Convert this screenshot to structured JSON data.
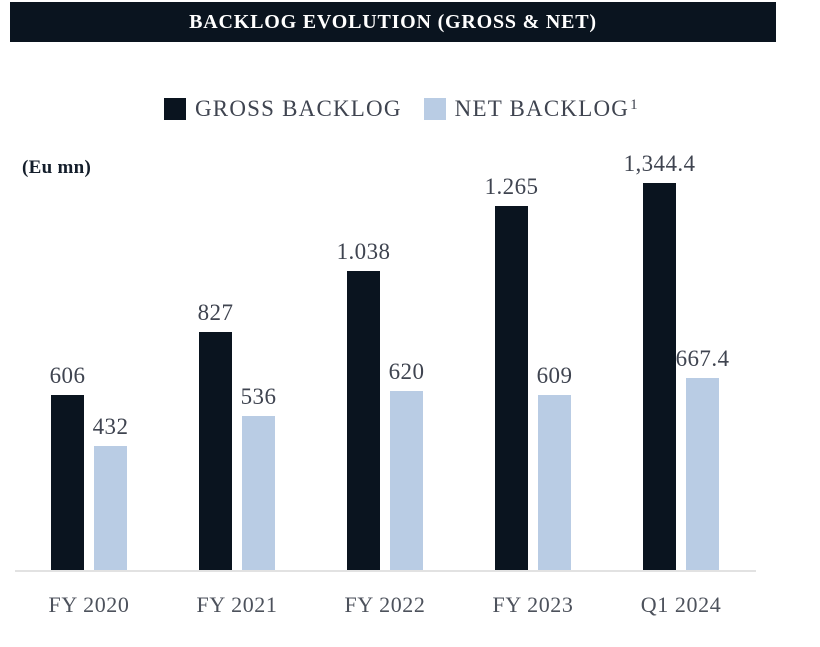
{
  "title_bar": {
    "text": "BACKLOG EVOLUTION (GROSS & NET)"
  },
  "legend": {
    "items": [
      {
        "label": "GROSS BACKLOG",
        "superscript": "",
        "color": "#0a141f"
      },
      {
        "label": "NET BACKLOG",
        "superscript": "1",
        "color": "#b9cce4"
      }
    ]
  },
  "units_label": "(Eu mn)",
  "colors": {
    "title_bg": "#0a141f",
    "title_text": "#ffffff",
    "gross_bar": "#0a141f",
    "net_bar": "#b9cce4",
    "value_text": "#3f4450",
    "axis_text": "#4d525c",
    "baseline": "#e2e2e2"
  },
  "chart_data": {
    "type": "bar",
    "title": "BACKLOG EVOLUTION (GROSS & NET)",
    "units": "(Eu mn)",
    "categories": [
      "FY 2020",
      "FY 2021",
      "FY 2022",
      "FY 2023",
      "Q1 2024"
    ],
    "series": [
      {
        "name": "GROSS BACKLOG",
        "color": "#0a141f",
        "values": [
          606,
          827,
          1038,
          1265,
          1344.4
        ],
        "labels": [
          "606",
          "827",
          "1.038",
          "1.265",
          "1,344.4"
        ]
      },
      {
        "name": "NET BACKLOG",
        "legend_superscript": "1",
        "color": "#b9cce4",
        "values": [
          432,
          536,
          620,
          609,
          667.4
        ],
        "labels": [
          "432",
          "536",
          "620",
          "609",
          "667.4"
        ]
      }
    ],
    "ylim": [
      0,
      1400
    ],
    "grid": false,
    "legend_position": "top",
    "value_labels_shown": true
  }
}
